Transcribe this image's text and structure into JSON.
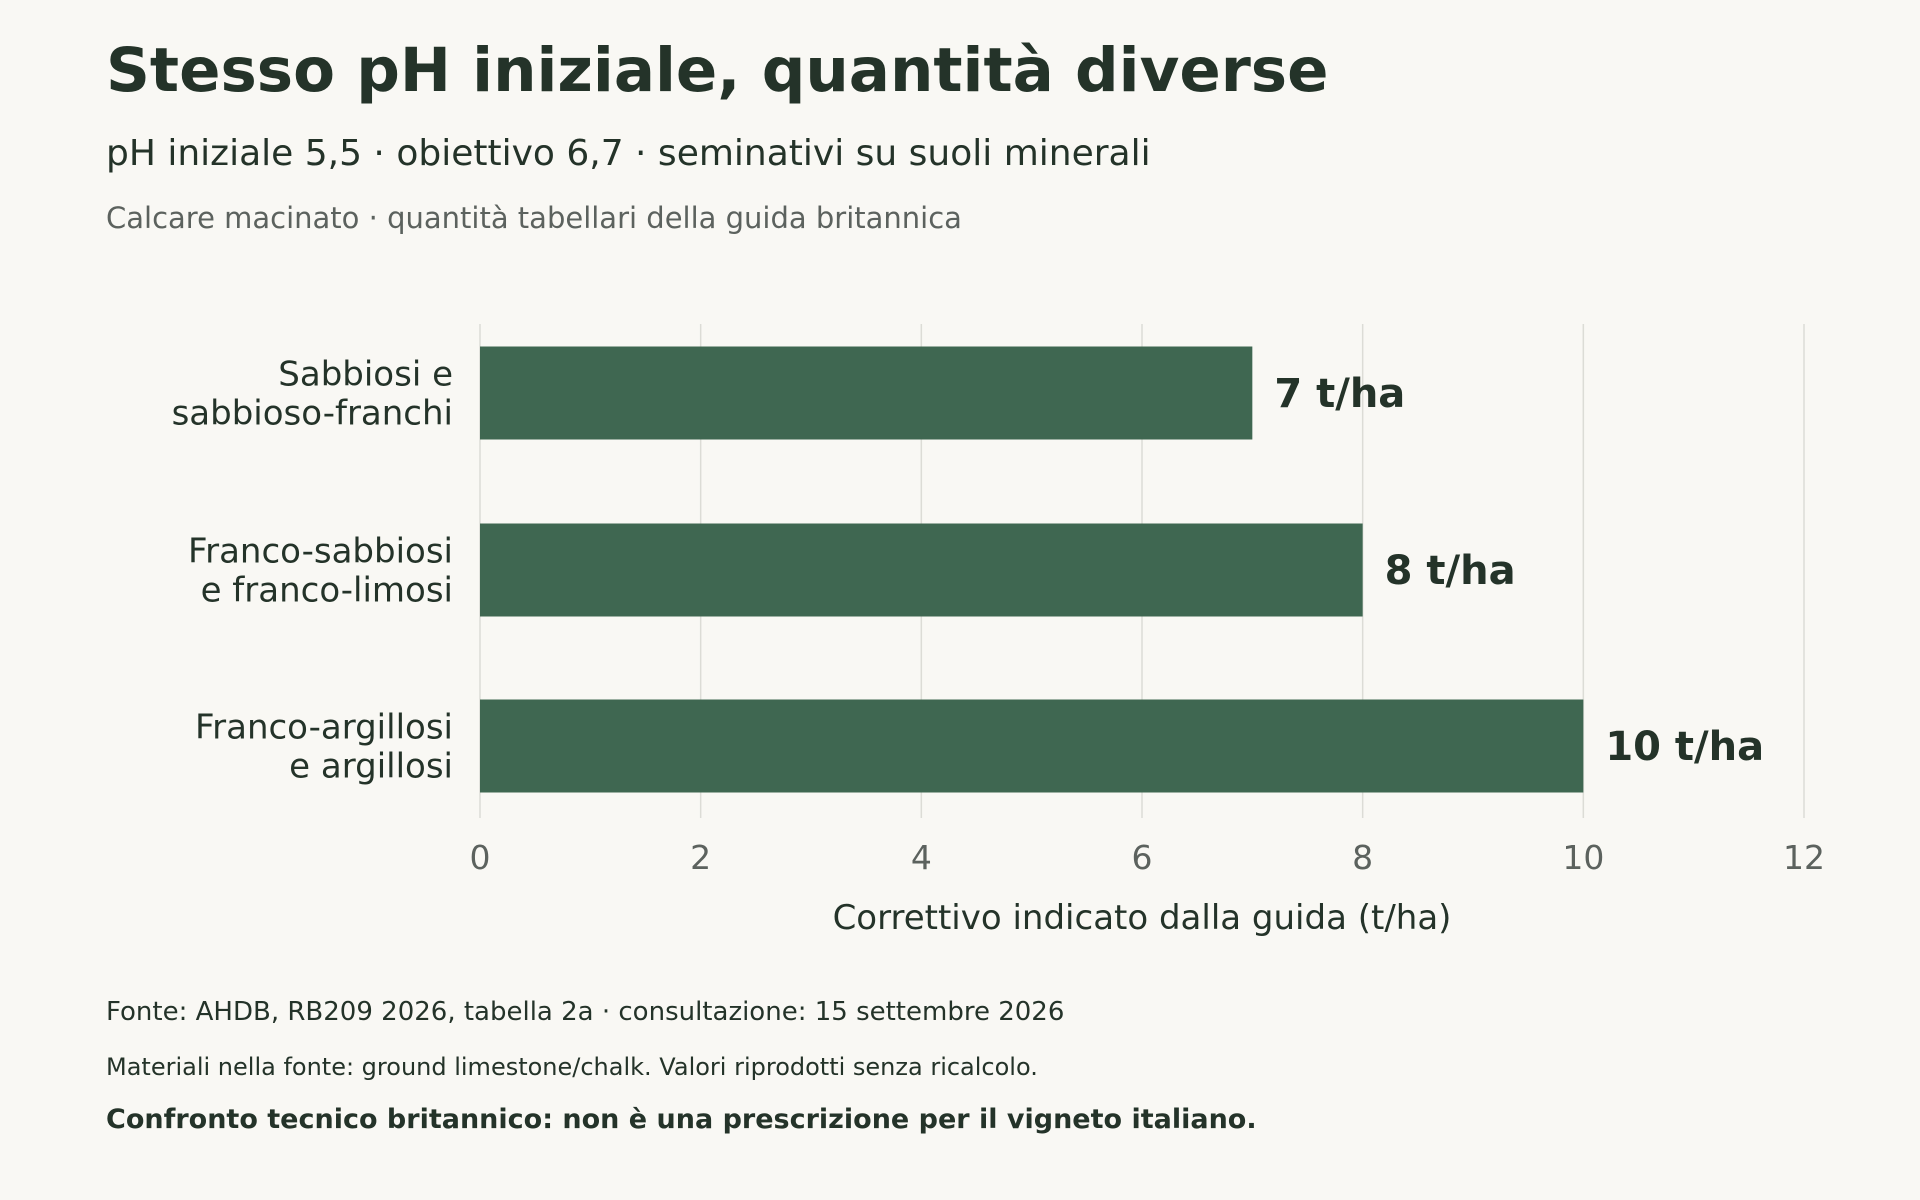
{
  "header": {
    "title": "Stesso pH iniziale, quantità diverse",
    "subtitle": "pH iniziale 5,5 · obiettivo 6,7 · seminativi su suoli minerali",
    "caption": "Calcare macinato · quantità tabellari della guida britannica"
  },
  "footer": {
    "source": "Fonte: AHDB, RB209 2026, tabella 2a · consultazione: 15 settembre 2026",
    "materials": "Materiali nella fonte: ground limestone/chalk. Valori riprodotti senza ricalcolo.",
    "disclaimer": "Confronto tecnico britannico: non è una prescrizione per il vigneto italiano."
  },
  "colors": {
    "bar": "#3f6751",
    "grid": "#dcdcd6",
    "text": "#243329",
    "muted": "#5c625e",
    "background": "#f9f8f4"
  },
  "chart_data": {
    "type": "bar",
    "orientation": "horizontal",
    "categories": [
      [
        "Sabbiosi e",
        "sabbioso-franchi"
      ],
      [
        "Franco-sabbiosi",
        "e franco-limosi"
      ],
      [
        "Franco-argillosi",
        "e argillosi"
      ]
    ],
    "values": [
      7,
      8,
      10
    ],
    "value_labels": [
      "7 t/ha",
      "8 t/ha",
      "10 t/ha"
    ],
    "xlabel": "Correttivo indicato dalla guida (t/ha)",
    "xlim": [
      0,
      12
    ],
    "xticks": [
      0,
      2,
      4,
      6,
      8,
      10,
      12
    ],
    "grid": "vertical",
    "legend": "none"
  }
}
